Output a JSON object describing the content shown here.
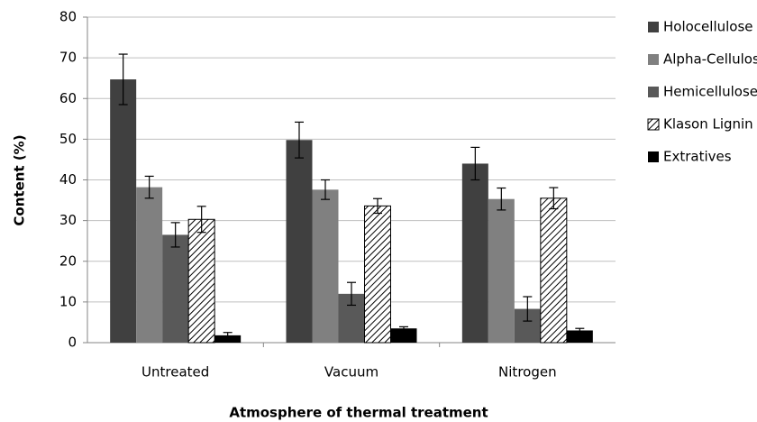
{
  "chart_data": {
    "type": "bar",
    "x_label": "Atmosphere of thermal treatment",
    "y_label": "Content (%)",
    "categories": [
      "Untreated",
      "Vacuum",
      "Nitrogen"
    ],
    "series": [
      {
        "name": "Holocellulose",
        "color": "#404040",
        "values": [
          64.7,
          49.8,
          44.0
        ],
        "errors": [
          6.2,
          4.4,
          4.0
        ]
      },
      {
        "name": "Alpha-Cellulose",
        "color": "#808080",
        "values": [
          38.2,
          37.6,
          35.3
        ],
        "errors": [
          2.7,
          2.4,
          2.7
        ]
      },
      {
        "name": "Hemicellulose",
        "color": "#595959",
        "values": [
          26.5,
          12.0,
          8.3
        ],
        "errors": [
          3.0,
          2.8,
          3.0
        ]
      },
      {
        "name": "Klason Lignin",
        "color": "#000000",
        "pattern": "hatch",
        "values": [
          30.3,
          33.6,
          35.5
        ],
        "errors": [
          3.2,
          1.8,
          2.6
        ]
      },
      {
        "name": "Extratives",
        "color": "#000000",
        "values": [
          1.8,
          3.5,
          3.0
        ],
        "errors": [
          0.7,
          0.4,
          0.5
        ]
      }
    ],
    "ylim": [
      0,
      80
    ],
    "yticks": [
      0,
      10,
      20,
      30,
      40,
      50,
      60,
      70,
      80
    ],
    "grid": true,
    "legend": "right"
  }
}
